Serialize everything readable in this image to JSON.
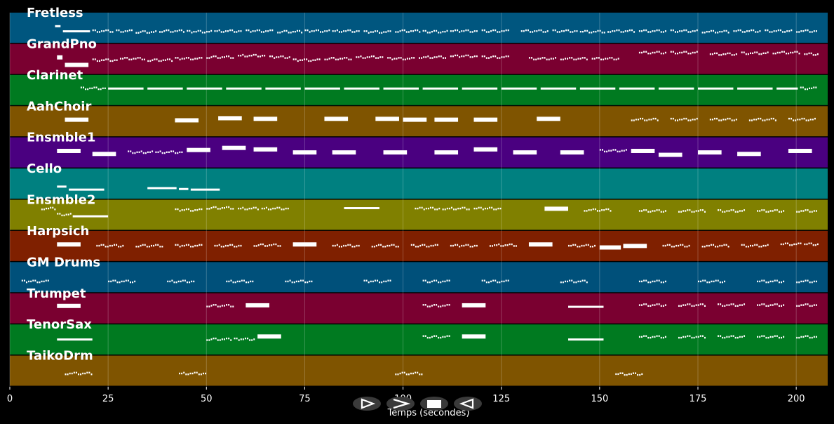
{
  "chart_data": {
    "type": "piano-roll",
    "title": "",
    "xlabel": "Temps (secondes)",
    "xlim": [
      0,
      208
    ],
    "xticks": [
      0,
      25,
      50,
      75,
      100,
      125,
      150,
      175,
      200
    ],
    "grid": true,
    "tracks": [
      {
        "name": "Fretless",
        "color": "#00567f",
        "notes": [
          [
            11.5,
            0.45,
            "l"
          ],
          [
            13.5,
            0.62,
            "l"
          ],
          [
            21,
            0.62,
            "d"
          ],
          [
            27,
            0.62,
            "d"
          ],
          [
            32,
            0.65,
            "d"
          ],
          [
            38,
            0.62,
            "d"
          ],
          [
            45,
            0.64,
            "d"
          ],
          [
            52,
            0.62,
            "d"
          ],
          [
            60,
            0.62,
            "d"
          ],
          [
            68,
            0.64,
            "d"
          ],
          [
            75,
            0.62,
            "d"
          ],
          [
            82,
            0.62,
            "d"
          ],
          [
            90,
            0.65,
            "d"
          ],
          [
            98,
            0.62,
            "d"
          ],
          [
            105,
            0.64,
            "d"
          ],
          [
            112,
            0.62,
            "d"
          ],
          [
            120,
            0.62,
            "d"
          ],
          [
            130,
            0.62,
            "d"
          ],
          [
            138,
            0.62,
            "d"
          ],
          [
            145,
            0.64,
            "d"
          ],
          [
            152,
            0.62,
            "d"
          ],
          [
            160,
            0.62,
            "d"
          ],
          [
            168,
            0.62,
            "d"
          ],
          [
            176,
            0.64,
            "d"
          ],
          [
            184,
            0.62,
            "d"
          ],
          [
            192,
            0.62,
            "d"
          ],
          [
            200,
            0.62,
            "d"
          ]
        ]
      },
      {
        "name": "GrandPno",
        "color": "#7a0030",
        "notes": [
          [
            12,
            0.45,
            "s"
          ],
          [
            14,
            0.7,
            "s"
          ],
          [
            21,
            0.55,
            "d"
          ],
          [
            28,
            0.5,
            "d"
          ],
          [
            35,
            0.55,
            "d"
          ],
          [
            42,
            0.5,
            "d"
          ],
          [
            50,
            0.45,
            "d"
          ],
          [
            58,
            0.4,
            "d"
          ],
          [
            66,
            0.45,
            "d"
          ],
          [
            72,
            0.55,
            "d"
          ],
          [
            80,
            0.5,
            "d"
          ],
          [
            88,
            0.45,
            "d"
          ],
          [
            96,
            0.5,
            "d"
          ],
          [
            104,
            0.45,
            "d"
          ],
          [
            112,
            0.42,
            "d"
          ],
          [
            120,
            0.45,
            "d"
          ],
          [
            132,
            0.5,
            "d"
          ],
          [
            140,
            0.5,
            "d"
          ],
          [
            148,
            0.5,
            "d"
          ],
          [
            160,
            0.3,
            "d"
          ],
          [
            168,
            0.3,
            "d"
          ],
          [
            178,
            0.35,
            "d"
          ],
          [
            186,
            0.32,
            "d"
          ],
          [
            194,
            0.3,
            "d"
          ],
          [
            202,
            0.35,
            "d"
          ]
        ]
      },
      {
        "name": "Clarinet",
        "color": "#007a20",
        "notes": [
          [
            18,
            0.45,
            "d"
          ],
          [
            25,
            0.45,
            "l"
          ],
          [
            35,
            0.45,
            "l"
          ],
          [
            45,
            0.45,
            "l"
          ],
          [
            55,
            0.45,
            "l"
          ],
          [
            65,
            0.45,
            "l"
          ],
          [
            75,
            0.45,
            "l"
          ],
          [
            85,
            0.45,
            "l"
          ],
          [
            95,
            0.45,
            "l"
          ],
          [
            105,
            0.45,
            "l"
          ],
          [
            115,
            0.45,
            "l"
          ],
          [
            125,
            0.45,
            "l"
          ],
          [
            135,
            0.45,
            "l"
          ],
          [
            145,
            0.45,
            "l"
          ],
          [
            155,
            0.45,
            "l"
          ],
          [
            165,
            0.45,
            "l"
          ],
          [
            175,
            0.45,
            "l"
          ],
          [
            185,
            0.45,
            "l"
          ],
          [
            195,
            0.45,
            "l"
          ],
          [
            201,
            0.45,
            "d"
          ]
        ]
      },
      {
        "name": "AahChoir",
        "color": "#7f5400",
        "notes": [
          [
            14,
            0.45,
            "s"
          ],
          [
            42,
            0.47,
            "s"
          ],
          [
            53,
            0.4,
            "s"
          ],
          [
            62,
            0.42,
            "s"
          ],
          [
            80,
            0.42,
            "s"
          ],
          [
            93,
            0.42,
            "s"
          ],
          [
            100,
            0.45,
            "s"
          ],
          [
            108,
            0.45,
            "s"
          ],
          [
            118,
            0.45,
            "s"
          ],
          [
            134,
            0.42,
            "s"
          ],
          [
            158,
            0.45,
            "d"
          ],
          [
            168,
            0.45,
            "d"
          ],
          [
            178,
            0.45,
            "d"
          ],
          [
            188,
            0.45,
            "d"
          ],
          [
            198,
            0.45,
            "d"
          ]
        ]
      },
      {
        "name": "Ensmble1",
        "color": "#4a0080",
        "notes": [
          [
            12,
            0.45,
            "s"
          ],
          [
            21,
            0.55,
            "s"
          ],
          [
            30,
            0.5,
            "d"
          ],
          [
            37,
            0.5,
            "d"
          ],
          [
            45,
            0.42,
            "s"
          ],
          [
            54,
            0.35,
            "s"
          ],
          [
            62,
            0.4,
            "s"
          ],
          [
            72,
            0.5,
            "s"
          ],
          [
            82,
            0.5,
            "s"
          ],
          [
            95,
            0.5,
            "s"
          ],
          [
            108,
            0.5,
            "s"
          ],
          [
            118,
            0.4,
            "s"
          ],
          [
            128,
            0.5,
            "s"
          ],
          [
            140,
            0.5,
            "s"
          ],
          [
            150,
            0.45,
            "d"
          ],
          [
            158,
            0.45,
            "s"
          ],
          [
            165,
            0.58,
            "s"
          ],
          [
            175,
            0.5,
            "s"
          ],
          [
            185,
            0.55,
            "s"
          ],
          [
            198,
            0.45,
            "s"
          ]
        ]
      },
      {
        "name": "Cello",
        "color": "#008080",
        "notes": [
          [
            12,
            0.6,
            "l"
          ],
          [
            15,
            0.7,
            "l"
          ],
          [
            35,
            0.65,
            "l"
          ],
          [
            43,
            0.68,
            "l"
          ],
          [
            46,
            0.7,
            "l"
          ]
        ]
      },
      {
        "name": "Ensmble2",
        "color": "#808000",
        "notes": [
          [
            8,
            0.3,
            "d"
          ],
          [
            12,
            0.5,
            "d"
          ],
          [
            16,
            0.55,
            "l"
          ],
          [
            42,
            0.35,
            "d"
          ],
          [
            50,
            0.28,
            "d"
          ],
          [
            58,
            0.3,
            "d"
          ],
          [
            64,
            0.3,
            "d"
          ],
          [
            85,
            0.28,
            "l"
          ],
          [
            103,
            0.3,
            "d"
          ],
          [
            110,
            0.3,
            "d"
          ],
          [
            118,
            0.3,
            "d"
          ],
          [
            136,
            0.3,
            "s"
          ],
          [
            146,
            0.35,
            "d"
          ],
          [
            160,
            0.38,
            "d"
          ],
          [
            170,
            0.38,
            "d"
          ],
          [
            180,
            0.38,
            "d"
          ],
          [
            190,
            0.38,
            "d"
          ],
          [
            200,
            0.38,
            "d"
          ]
        ]
      },
      {
        "name": "Harpsich",
        "color": "#7f2000",
        "notes": [
          [
            12,
            0.45,
            "s"
          ],
          [
            22,
            0.5,
            "d"
          ],
          [
            32,
            0.5,
            "d"
          ],
          [
            42,
            0.5,
            "d"
          ],
          [
            52,
            0.5,
            "d"
          ],
          [
            62,
            0.48,
            "d"
          ],
          [
            72,
            0.45,
            "s"
          ],
          [
            82,
            0.5,
            "d"
          ],
          [
            92,
            0.5,
            "d"
          ],
          [
            102,
            0.5,
            "d"
          ],
          [
            112,
            0.5,
            "d"
          ],
          [
            122,
            0.48,
            "d"
          ],
          [
            132,
            0.45,
            "s"
          ],
          [
            142,
            0.5,
            "d"
          ],
          [
            150,
            0.55,
            "s"
          ],
          [
            156,
            0.5,
            "s"
          ],
          [
            166,
            0.5,
            "d"
          ],
          [
            176,
            0.5,
            "d"
          ],
          [
            186,
            0.5,
            "d"
          ],
          [
            196,
            0.45,
            "d"
          ],
          [
            202,
            0.45,
            "d"
          ]
        ]
      },
      {
        "name": "GM Drums",
        "color": "#00507a",
        "notes": [
          [
            3,
            0.65,
            "d"
          ],
          [
            25,
            0.65,
            "d"
          ],
          [
            40,
            0.65,
            "d"
          ],
          [
            55,
            0.65,
            "d"
          ],
          [
            70,
            0.65,
            "d"
          ],
          [
            90,
            0.65,
            "d"
          ],
          [
            105,
            0.65,
            "d"
          ],
          [
            120,
            0.65,
            "d"
          ],
          [
            140,
            0.65,
            "d"
          ],
          [
            160,
            0.65,
            "d"
          ],
          [
            175,
            0.65,
            "d"
          ],
          [
            190,
            0.65,
            "d"
          ],
          [
            200,
            0.65,
            "d"
          ]
        ]
      },
      {
        "name": "Trumpet",
        "color": "#7a0030",
        "notes": [
          [
            12,
            0.42,
            "s"
          ],
          [
            50,
            0.42,
            "d"
          ],
          [
            60,
            0.4,
            "s"
          ],
          [
            105,
            0.42,
            "d"
          ],
          [
            115,
            0.4,
            "s"
          ],
          [
            142,
            0.45,
            "l"
          ],
          [
            160,
            0.4,
            "d"
          ],
          [
            170,
            0.4,
            "d"
          ],
          [
            180,
            0.4,
            "d"
          ],
          [
            190,
            0.4,
            "d"
          ],
          [
            200,
            0.4,
            "d"
          ]
        ]
      },
      {
        "name": "TenorSax",
        "color": "#007a20",
        "notes": [
          [
            12,
            0.5,
            "l"
          ],
          [
            50,
            0.5,
            "d"
          ],
          [
            57,
            0.5,
            "d"
          ],
          [
            63,
            0.4,
            "s"
          ],
          [
            105,
            0.42,
            "d"
          ],
          [
            115,
            0.4,
            "s"
          ],
          [
            142,
            0.5,
            "l"
          ],
          [
            160,
            0.42,
            "d"
          ],
          [
            170,
            0.42,
            "d"
          ],
          [
            180,
            0.42,
            "d"
          ],
          [
            190,
            0.42,
            "d"
          ],
          [
            200,
            0.42,
            "d"
          ]
        ]
      },
      {
        "name": "TaikoDrm",
        "color": "#7f5400",
        "notes": [
          [
            14,
            0.6,
            "d"
          ],
          [
            43,
            0.6,
            "d"
          ],
          [
            98,
            0.6,
            "d"
          ],
          [
            154,
            0.62,
            "d"
          ]
        ]
      }
    ]
  },
  "controls": {
    "play_icon": "play-outline-icon",
    "forward_icon": "fast-forward-icon",
    "stop_icon": "stop-icon",
    "rewind_icon": "rewind-icon"
  }
}
